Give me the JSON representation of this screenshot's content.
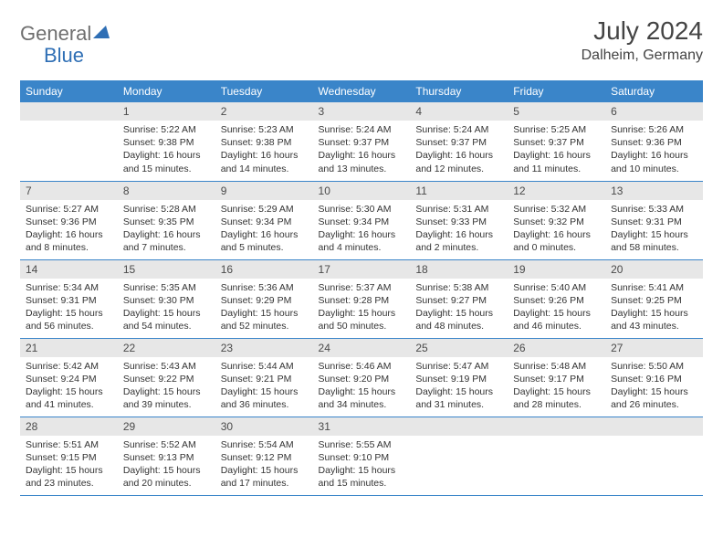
{
  "brand": {
    "part1": "General",
    "part2": "Blue"
  },
  "title": "July 2024",
  "location": "Dalheim, Germany",
  "colors": {
    "header_bg": "#3a85c9",
    "header_text": "#ffffff",
    "daynum_bg": "#e7e7e7",
    "border": "#3a85c9",
    "brand_gray": "#6f6f6f",
    "brand_blue": "#2f6fb5",
    "text": "#333333"
  },
  "weekdays": [
    "Sunday",
    "Monday",
    "Tuesday",
    "Wednesday",
    "Thursday",
    "Friday",
    "Saturday"
  ],
  "weeks": [
    [
      null,
      {
        "d": "1",
        "sr": "5:22 AM",
        "ss": "9:38 PM",
        "dl": "16 hours and 15 minutes."
      },
      {
        "d": "2",
        "sr": "5:23 AM",
        "ss": "9:38 PM",
        "dl": "16 hours and 14 minutes."
      },
      {
        "d": "3",
        "sr": "5:24 AM",
        "ss": "9:37 PM",
        "dl": "16 hours and 13 minutes."
      },
      {
        "d": "4",
        "sr": "5:24 AM",
        "ss": "9:37 PM",
        "dl": "16 hours and 12 minutes."
      },
      {
        "d": "5",
        "sr": "5:25 AM",
        "ss": "9:37 PM",
        "dl": "16 hours and 11 minutes."
      },
      {
        "d": "6",
        "sr": "5:26 AM",
        "ss": "9:36 PM",
        "dl": "16 hours and 10 minutes."
      }
    ],
    [
      {
        "d": "7",
        "sr": "5:27 AM",
        "ss": "9:36 PM",
        "dl": "16 hours and 8 minutes."
      },
      {
        "d": "8",
        "sr": "5:28 AM",
        "ss": "9:35 PM",
        "dl": "16 hours and 7 minutes."
      },
      {
        "d": "9",
        "sr": "5:29 AM",
        "ss": "9:34 PM",
        "dl": "16 hours and 5 minutes."
      },
      {
        "d": "10",
        "sr": "5:30 AM",
        "ss": "9:34 PM",
        "dl": "16 hours and 4 minutes."
      },
      {
        "d": "11",
        "sr": "5:31 AM",
        "ss": "9:33 PM",
        "dl": "16 hours and 2 minutes."
      },
      {
        "d": "12",
        "sr": "5:32 AM",
        "ss": "9:32 PM",
        "dl": "16 hours and 0 minutes."
      },
      {
        "d": "13",
        "sr": "5:33 AM",
        "ss": "9:31 PM",
        "dl": "15 hours and 58 minutes."
      }
    ],
    [
      {
        "d": "14",
        "sr": "5:34 AM",
        "ss": "9:31 PM",
        "dl": "15 hours and 56 minutes."
      },
      {
        "d": "15",
        "sr": "5:35 AM",
        "ss": "9:30 PM",
        "dl": "15 hours and 54 minutes."
      },
      {
        "d": "16",
        "sr": "5:36 AM",
        "ss": "9:29 PM",
        "dl": "15 hours and 52 minutes."
      },
      {
        "d": "17",
        "sr": "5:37 AM",
        "ss": "9:28 PM",
        "dl": "15 hours and 50 minutes."
      },
      {
        "d": "18",
        "sr": "5:38 AM",
        "ss": "9:27 PM",
        "dl": "15 hours and 48 minutes."
      },
      {
        "d": "19",
        "sr": "5:40 AM",
        "ss": "9:26 PM",
        "dl": "15 hours and 46 minutes."
      },
      {
        "d": "20",
        "sr": "5:41 AM",
        "ss": "9:25 PM",
        "dl": "15 hours and 43 minutes."
      }
    ],
    [
      {
        "d": "21",
        "sr": "5:42 AM",
        "ss": "9:24 PM",
        "dl": "15 hours and 41 minutes."
      },
      {
        "d": "22",
        "sr": "5:43 AM",
        "ss": "9:22 PM",
        "dl": "15 hours and 39 minutes."
      },
      {
        "d": "23",
        "sr": "5:44 AM",
        "ss": "9:21 PM",
        "dl": "15 hours and 36 minutes."
      },
      {
        "d": "24",
        "sr": "5:46 AM",
        "ss": "9:20 PM",
        "dl": "15 hours and 34 minutes."
      },
      {
        "d": "25",
        "sr": "5:47 AM",
        "ss": "9:19 PM",
        "dl": "15 hours and 31 minutes."
      },
      {
        "d": "26",
        "sr": "5:48 AM",
        "ss": "9:17 PM",
        "dl": "15 hours and 28 minutes."
      },
      {
        "d": "27",
        "sr": "5:50 AM",
        "ss": "9:16 PM",
        "dl": "15 hours and 26 minutes."
      }
    ],
    [
      {
        "d": "28",
        "sr": "5:51 AM",
        "ss": "9:15 PM",
        "dl": "15 hours and 23 minutes."
      },
      {
        "d": "29",
        "sr": "5:52 AM",
        "ss": "9:13 PM",
        "dl": "15 hours and 20 minutes."
      },
      {
        "d": "30",
        "sr": "5:54 AM",
        "ss": "9:12 PM",
        "dl": "15 hours and 17 minutes."
      },
      {
        "d": "31",
        "sr": "5:55 AM",
        "ss": "9:10 PM",
        "dl": "15 hours and 15 minutes."
      },
      null,
      null,
      null
    ]
  ],
  "labels": {
    "sunrise": "Sunrise:",
    "sunset": "Sunset:",
    "daylight": "Daylight:"
  }
}
